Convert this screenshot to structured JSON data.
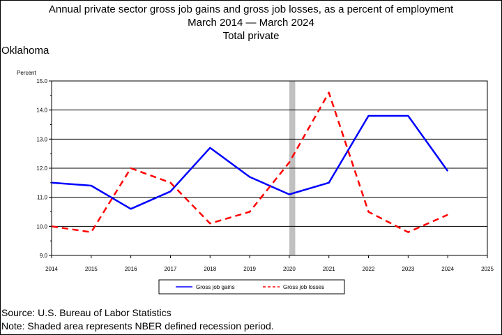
{
  "titles": {
    "line1": "Annual private sector gross job gains and gross job losses, as a percent of employment",
    "line2": "March 2014 — March 2024",
    "line3": "Total private"
  },
  "region": "Oklahoma",
  "footer": {
    "source": "Source: U.S. Bureau of Labor Statistics",
    "note": "Note: Shaded area represents NBER defined recession period."
  },
  "chart_data": {
    "type": "line",
    "ylabel": "Percent",
    "xlim": [
      2014,
      2025
    ],
    "ylim": [
      9.0,
      15.0
    ],
    "x_ticks": [
      2014,
      2015,
      2016,
      2017,
      2018,
      2019,
      2020,
      2021,
      2022,
      2023,
      2024,
      2025
    ],
    "y_ticks": [
      "9.0",
      "10.0",
      "11.0",
      "12.0",
      "13.0",
      "14.0",
      "15.0"
    ],
    "grid": "horizontal",
    "legend_position": "bottom",
    "recession": {
      "start": 2020.0,
      "end": 2020.15,
      "color": "#c0c0c0"
    },
    "series": [
      {
        "name": "Gross job gains",
        "color": "#0000ff",
        "dash": "solid",
        "x": [
          2014,
          2015,
          2016,
          2017,
          2018,
          2019,
          2020,
          2021,
          2022,
          2023,
          2024
        ],
        "values": [
          11.5,
          11.4,
          10.6,
          11.2,
          12.7,
          11.7,
          11.1,
          11.5,
          13.8,
          13.8,
          11.9
        ]
      },
      {
        "name": "Gross job losses",
        "color": "#ff0000",
        "dash": "dashed",
        "x": [
          2014,
          2015,
          2016,
          2017,
          2018,
          2019,
          2020,
          2021,
          2022,
          2023,
          2024
        ],
        "values": [
          10.0,
          9.8,
          12.0,
          11.5,
          10.1,
          10.5,
          12.2,
          14.6,
          10.5,
          9.8,
          10.4
        ]
      }
    ]
  }
}
